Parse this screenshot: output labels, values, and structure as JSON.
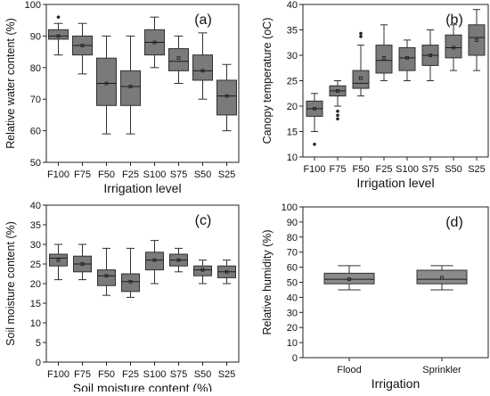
{
  "chart_data": [
    {
      "type": "box",
      "panel_label": "(a)",
      "xlabel": "Irrigation level",
      "ylabel": "Relative water content (%)",
      "ylim": [
        50,
        100
      ],
      "yticks": [
        50,
        60,
        70,
        80,
        90,
        100
      ],
      "categories": [
        "F100",
        "F75",
        "F50",
        "F25",
        "S100",
        "S75",
        "S50",
        "S25"
      ],
      "boxes": [
        {
          "category": "F100",
          "min": 84,
          "q1": 89,
          "median": 90,
          "q3": 92,
          "max": 94,
          "mean": 90,
          "outliers": [
            96
          ]
        },
        {
          "category": "F75",
          "min": 78,
          "q1": 84,
          "median": 87,
          "q3": 90,
          "max": 94,
          "mean": 87,
          "outliers": []
        },
        {
          "category": "F50",
          "min": 59,
          "q1": 68,
          "median": 75,
          "q3": 83,
          "max": 90,
          "mean": 75,
          "outliers": []
        },
        {
          "category": "F25",
          "min": 59,
          "q1": 68,
          "median": 74,
          "q3": 79,
          "max": 90,
          "mean": 74,
          "outliers": []
        },
        {
          "category": "S100",
          "min": 80,
          "q1": 84,
          "median": 88,
          "q3": 92,
          "max": 96,
          "mean": 88,
          "outliers": []
        },
        {
          "category": "S75",
          "min": 75,
          "q1": 79,
          "median": 82,
          "q3": 86,
          "max": 90,
          "mean": 83,
          "outliers": []
        },
        {
          "category": "S50",
          "min": 70,
          "q1": 76,
          "median": 79,
          "q3": 84,
          "max": 91,
          "mean": 79,
          "outliers": []
        },
        {
          "category": "S25",
          "min": 60,
          "q1": 65,
          "median": 71,
          "q3": 76,
          "max": 81,
          "mean": 71,
          "outliers": []
        }
      ]
    },
    {
      "type": "box",
      "panel_label": "(b)",
      "xlabel": "Irrigation level",
      "ylabel": "Canopy temperature (oC)",
      "ylim": [
        10,
        40
      ],
      "yticks": [
        10,
        15,
        20,
        25,
        30,
        35,
        40
      ],
      "categories": [
        "F100",
        "F75",
        "F50",
        "F25",
        "S100",
        "S75",
        "S50",
        "S25"
      ],
      "boxes": [
        {
          "category": "F100",
          "min": 15,
          "q1": 18,
          "median": 19.5,
          "q3": 21,
          "max": 22.5,
          "mean": 19.5,
          "outliers": [
            12.5
          ]
        },
        {
          "category": "F75",
          "min": 20,
          "q1": 22,
          "median": 23,
          "q3": 24,
          "max": 25,
          "mean": 23,
          "outliers": [
            17.5,
            18.2,
            19
          ]
        },
        {
          "category": "F50",
          "min": 22,
          "q1": 23.5,
          "median": 24.5,
          "q3": 27,
          "max": 32,
          "mean": 25.5,
          "outliers": [
            33.7,
            34.3
          ]
        },
        {
          "category": "F25",
          "min": 25,
          "q1": 26.5,
          "median": 29,
          "q3": 32,
          "max": 36,
          "mean": 29.5,
          "outliers": []
        },
        {
          "category": "S100",
          "min": 25,
          "q1": 27,
          "median": 29.5,
          "q3": 31.5,
          "max": 33,
          "mean": 29.5,
          "outliers": []
        },
        {
          "category": "S75",
          "min": 25,
          "q1": 28,
          "median": 30,
          "q3": 32,
          "max": 35,
          "mean": 30,
          "outliers": []
        },
        {
          "category": "S50",
          "min": 27,
          "q1": 29.5,
          "median": 31.5,
          "q3": 34,
          "max": 36,
          "mean": 31.5,
          "outliers": []
        },
        {
          "category": "S25",
          "min": 27,
          "q1": 30,
          "median": 33.5,
          "q3": 36,
          "max": 39,
          "mean": 33,
          "outliers": []
        }
      ]
    },
    {
      "type": "box",
      "panel_label": "(c)",
      "xlabel": "Soil moisture content (%)",
      "ylabel": "Soil moisture content (%)",
      "ylim": [
        0,
        40
      ],
      "yticks": [
        0,
        5,
        10,
        15,
        20,
        25,
        30,
        35,
        40
      ],
      "categories": [
        "F100",
        "F75",
        "F50",
        "F25",
        "S100",
        "S75",
        "S50",
        "S25"
      ],
      "boxes": [
        {
          "category": "F100",
          "min": 21,
          "q1": 24.5,
          "median": 26.5,
          "q3": 27.5,
          "max": 30,
          "mean": 26,
          "outliers": []
        },
        {
          "category": "F75",
          "min": 21,
          "q1": 23,
          "median": 25,
          "q3": 27,
          "max": 30,
          "mean": 25,
          "outliers": []
        },
        {
          "category": "F50",
          "min": 17,
          "q1": 19.5,
          "median": 22,
          "q3": 23.5,
          "max": 29,
          "mean": 22,
          "outliers": []
        },
        {
          "category": "F25",
          "min": 16.5,
          "q1": 18,
          "median": 20.5,
          "q3": 22.5,
          "max": 29,
          "mean": 20.5,
          "outliers": []
        },
        {
          "category": "S100",
          "min": 20,
          "q1": 23.5,
          "median": 26,
          "q3": 28,
          "max": 31,
          "mean": 26,
          "outliers": []
        },
        {
          "category": "S75",
          "min": 23,
          "q1": 24.5,
          "median": 26,
          "q3": 27.5,
          "max": 29,
          "mean": 26,
          "outliers": []
        },
        {
          "category": "S50",
          "min": 20,
          "q1": 22,
          "median": 23.5,
          "q3": 24.5,
          "max": 26,
          "mean": 23.5,
          "outliers": []
        },
        {
          "category": "S25",
          "min": 20,
          "q1": 21.5,
          "median": 23,
          "q3": 24.5,
          "max": 26,
          "mean": 23,
          "outliers": []
        }
      ]
    },
    {
      "type": "box",
      "panel_label": "(d)",
      "xlabel": "Irrigation",
      "ylabel": "Relative humidity (%)",
      "ylim": [
        0,
        100
      ],
      "yticks": [
        0,
        10,
        20,
        30,
        40,
        50,
        60,
        70,
        80,
        90,
        100
      ],
      "categories": [
        "Flood",
        "Sprinkler"
      ],
      "boxes": [
        {
          "category": "Flood",
          "min": 45,
          "q1": 49,
          "median": 52,
          "q3": 56,
          "max": 61,
          "mean": 52,
          "outliers": []
        },
        {
          "category": "Sprinkler",
          "min": 45,
          "q1": 49,
          "median": 52,
          "q3": 58,
          "max": 61,
          "mean": 53,
          "outliers": []
        }
      ]
    }
  ],
  "colors": {
    "box_fill": "#7a7a7a",
    "box_stroke": "#303030",
    "axis": "#222222"
  }
}
